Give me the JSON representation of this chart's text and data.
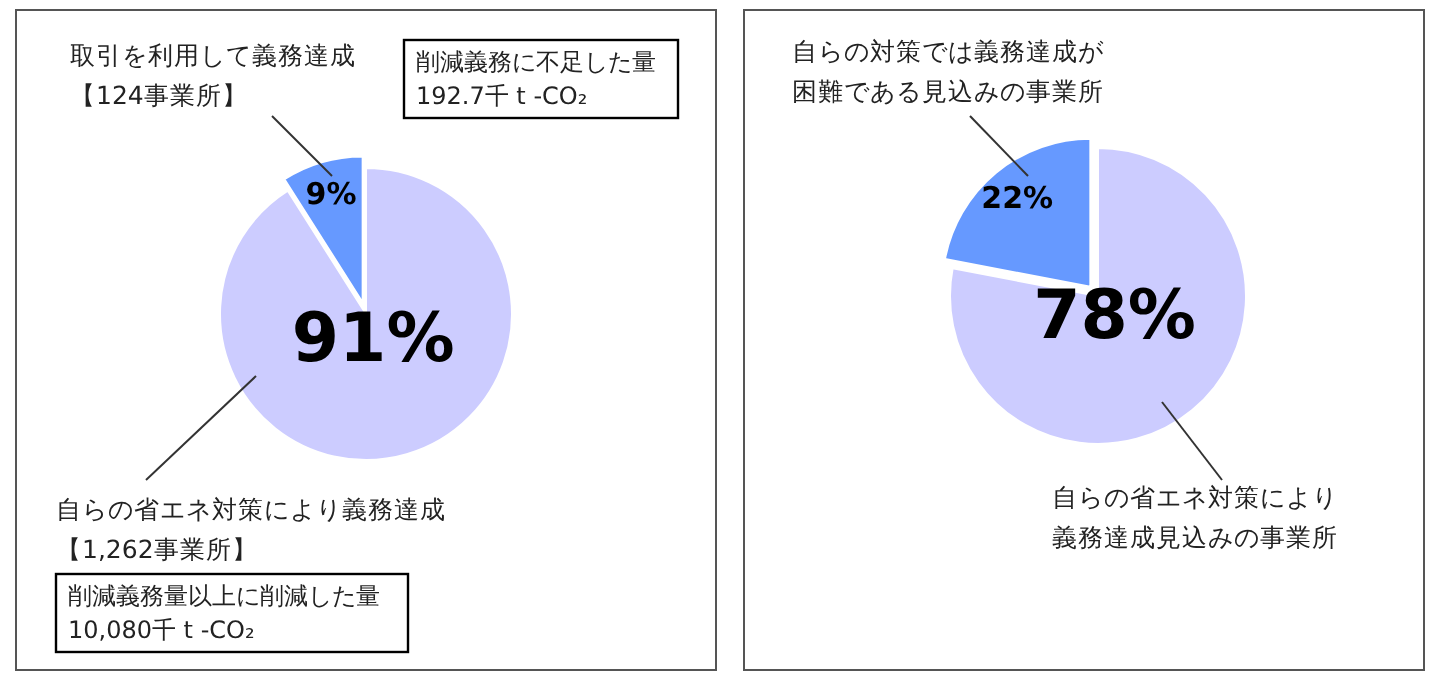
{
  "chart_data": [
    {
      "type": "pie",
      "categories": [
        "取引を利用して義務達成【124事業所】",
        "自らの省エネ対策により義務達成【1,262事業所】"
      ],
      "values": [
        9,
        91
      ],
      "colors": [
        "#6699ff",
        "#ccccff"
      ],
      "value_labels": [
        "9%",
        "91%"
      ],
      "annotations": [
        "削減義務に不足した量\n192.7千 t -CO₂",
        "削減義務量以上に削減した量\n10,080千 t -CO₂"
      ]
    },
    {
      "type": "pie",
      "categories": [
        "自らの対策では義務達成が困難である見込みの事業所",
        "自らの省エネ対策により義務達成見込みの事業所"
      ],
      "values": [
        22,
        78
      ],
      "colors": [
        "#6699ff",
        "#ccccff"
      ],
      "value_labels": [
        "22%",
        "78%"
      ]
    }
  ]
}
